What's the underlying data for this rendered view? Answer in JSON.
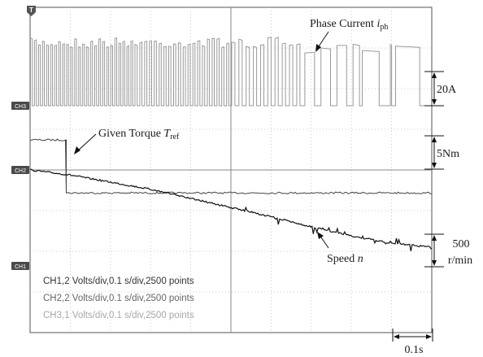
{
  "chart_data": {
    "type": "line",
    "x_unit": "s",
    "x_range": [
      0,
      1.0
    ],
    "time_per_division": "0.1 s/div",
    "series": [
      {
        "name": "Phase Current i_ph",
        "channel": "CH3",
        "label": {
          "main": "Phase Current ",
          "italic": "i",
          "sub": "ph"
        },
        "scale_label": "20A",
        "segment_periods_s": [
          {
            "from": 0.0,
            "to": 0.26,
            "period": 0.01
          },
          {
            "from": 0.26,
            "to": 0.5,
            "period": 0.012
          },
          {
            "from": 0.5,
            "to": 0.68,
            "period": 0.018
          },
          {
            "from": 0.68,
            "to": 0.82,
            "period": 0.04
          },
          {
            "from": 0.82,
            "to": 0.9,
            "period": 0.07
          },
          {
            "from": 0.9,
            "to": 1.0,
            "period": 0.1
          }
        ]
      },
      {
        "name": "Given Torque T_ref",
        "channel": "CH2",
        "label": {
          "main": "Given Torque ",
          "italic": "T",
          "sub": "ref"
        },
        "scale_label": "5Nm",
        "x": [
          0.0,
          0.09,
          0.09,
          1.0
        ],
        "y_div": [
          1.7,
          1.7,
          -1.3,
          -1.3
        ]
      },
      {
        "name": "Speed n",
        "channel": "CH1",
        "label": {
          "main": "Speed ",
          "italic": "n",
          "sub": ""
        },
        "scale_label": "500 r/min",
        "scale_label_lines": [
          "500",
          "r/min"
        ],
        "x": [
          0.0,
          0.1,
          0.2,
          0.3,
          0.4,
          0.5,
          0.6,
          0.7,
          0.8,
          0.9,
          1.0
        ],
        "y_div": [
          0.0,
          -0.25,
          -0.6,
          -0.95,
          -1.4,
          -1.85,
          -2.3,
          -2.8,
          -3.25,
          -3.6,
          -3.8
        ]
      }
    ],
    "channel_markers": [
      {
        "id": "ch3",
        "label": "CH3"
      },
      {
        "id": "ch2",
        "label": "CH2"
      },
      {
        "id": "ch1",
        "label": "CH1"
      }
    ],
    "trigger_marker": "T",
    "settings_lines": [
      "CH1,2 Volts/div,0.1 s/div,2500 points",
      "CH2,2 Volts/div,0.1 s/div,2500 points",
      "CH3,1 Volts/div,0.1 s/div,2500 points"
    ],
    "time_scale_label": "0.1s",
    "grid": true,
    "colors": {
      "current": "#9a9a9a",
      "torque": "#444444",
      "speed": "#111111",
      "grid": "#bdbdbd",
      "frame": "#555555",
      "settings_text": [
        "#333333",
        "#666666",
        "#a8a8a8"
      ]
    }
  }
}
